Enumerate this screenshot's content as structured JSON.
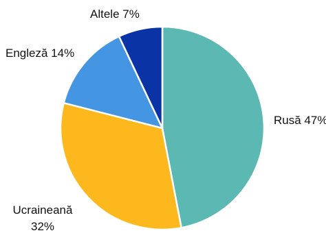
{
  "chart_data": {
    "type": "pie",
    "start_angle_deg": 0,
    "direction": "clockwise",
    "slices": [
      {
        "name": "Rusă",
        "value": 47,
        "label_lines": [
          "Rusă 47%"
        ],
        "color": "#5cb8b2"
      },
      {
        "name": "Ucraineană",
        "value": 32,
        "label_lines": [
          "Ucraineană",
          "32%"
        ],
        "color": "#fdb81e"
      },
      {
        "name": "Engleză",
        "value": 14,
        "label_lines": [
          "Engleză 14%"
        ],
        "color": "#4496e2"
      },
      {
        "name": "Altele",
        "value": 7,
        "label_lines": [
          "Altele 7%"
        ],
        "color": "#0a34a6"
      }
    ],
    "legend": "none",
    "slice_border_color": "#ffffff"
  }
}
